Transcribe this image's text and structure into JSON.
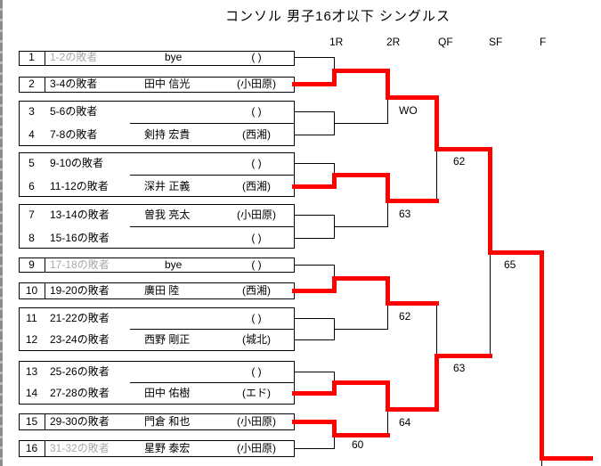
{
  "title": "コンソル 男子16才以下 シングルス",
  "rounds": [
    "1R",
    "2R",
    "QF",
    "SF",
    "F"
  ],
  "colors": {
    "page_bg": "#ffffff",
    "line": "#000000",
    "winner_path": "#ff0000",
    "text": "#000000",
    "muted_text": "#a9a9a9",
    "margin_strip": "#8d8d8d"
  },
  "entries": [
    {
      "no": "1",
      "source": "1-2の敗者",
      "source_muted": true,
      "name": "bye",
      "club": "( )"
    },
    {
      "no": "2",
      "source": "3-4の敗者",
      "source_muted": false,
      "name": "田中 信光",
      "club": "(小田原)"
    },
    {
      "no": "3",
      "source": "5-6の敗者",
      "source_muted": false,
      "name": "",
      "club": "( )"
    },
    {
      "no": "4",
      "source": "7-8の敗者",
      "source_muted": false,
      "name": "剣持 宏貴",
      "club": "(西湘)"
    },
    {
      "no": "5",
      "source": "9-10の敗者",
      "source_muted": false,
      "name": "",
      "club": "( )"
    },
    {
      "no": "6",
      "source": "11-12の敗者",
      "source_muted": false,
      "name": "深井 正義",
      "club": "(西湘)"
    },
    {
      "no": "7",
      "source": "13-14の敗者",
      "source_muted": false,
      "name": "曽我 亮太",
      "club": "(小田原)"
    },
    {
      "no": "8",
      "source": "15-16の敗者",
      "source_muted": false,
      "name": "",
      "club": "( )"
    },
    {
      "no": "9",
      "source": "17-18の敗者",
      "source_muted": true,
      "name": "bye",
      "club": "( )"
    },
    {
      "no": "10",
      "source": "19-20の敗者",
      "source_muted": false,
      "name": "廣田 陸",
      "club": "(西湘)"
    },
    {
      "no": "11",
      "source": "21-22の敗者",
      "source_muted": false,
      "name": "",
      "club": "( )"
    },
    {
      "no": "12",
      "source": "23-24の敗者",
      "source_muted": false,
      "name": "西野 剛正",
      "club": "(城北)"
    },
    {
      "no": "13",
      "source": "25-26の敗者",
      "source_muted": false,
      "name": "",
      "club": "( )"
    },
    {
      "no": "14",
      "source": "27-28の敗者",
      "source_muted": false,
      "name": "田中 佑樹",
      "club": "(エド)"
    },
    {
      "no": "15",
      "source": "29-30の敗者",
      "source_muted": false,
      "name": "門倉 和也",
      "club": "(小田原)"
    },
    {
      "no": "16",
      "source": "31-32の敗者",
      "source_muted": true,
      "name": "星野 泰宏",
      "club": "(小田原)"
    }
  ],
  "matches": {
    "r1": [
      {
        "score": "",
        "winner": "bottom"
      },
      {
        "score": "",
        "winner": ""
      },
      {
        "score": "",
        "winner": "bottom"
      },
      {
        "score": "",
        "winner": ""
      },
      {
        "score": "",
        "winner": "bottom"
      },
      {
        "score": "",
        "winner": ""
      },
      {
        "score": "",
        "winner": "bottom"
      },
      {
        "score": "60",
        "winner": "top"
      }
    ],
    "r2": [
      {
        "score": "WO",
        "winner": "top"
      },
      {
        "score": "63",
        "winner": "top"
      },
      {
        "score": "62",
        "winner": "top"
      },
      {
        "score": "64",
        "winner": "top"
      }
    ],
    "qf": [
      {
        "score": "62",
        "winner": "top"
      },
      {
        "score": "63",
        "winner": "bottom"
      }
    ],
    "sf": [
      {
        "score": "65",
        "winner": "top"
      }
    ]
  }
}
